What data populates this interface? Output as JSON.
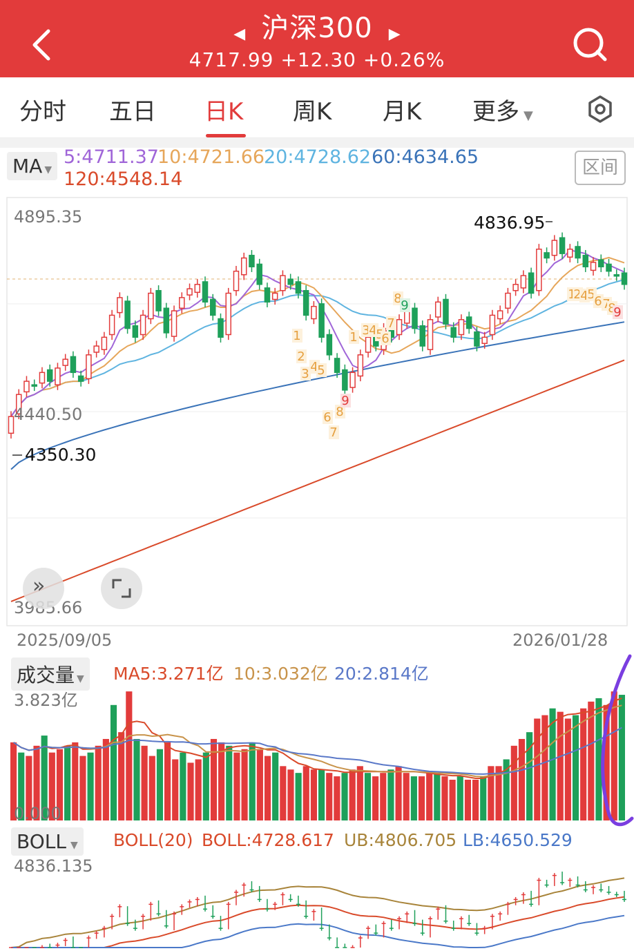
{
  "header": {
    "title": "沪深300",
    "price": "4717.99",
    "change": "+12.30",
    "change_pct": "+0.26%",
    "bg_color": "#e23b3b"
  },
  "tabs": [
    {
      "label": "分时"
    },
    {
      "label": "五日"
    },
    {
      "label": "日K",
      "active": true
    },
    {
      "label": "周K"
    },
    {
      "label": "月K"
    },
    {
      "label": "更多"
    }
  ],
  "ma": {
    "selector": "MA",
    "ma5": "5:4711.37",
    "ma10": "10:4721.66",
    "ma20": "20:4728.62",
    "ma60": "60:4634.65",
    "ma120": "120:4548.14",
    "range_button": "区间",
    "colors": {
      "ma5": "#a066d8",
      "ma10": "#e6a65a",
      "ma20": "#5fb4e0",
      "ma60": "#3a73b8",
      "ma120": "#d94a2a"
    }
  },
  "price_chart": {
    "y_top": "4895.35",
    "y_mid": "4440.50",
    "y_bottom": "3985.66",
    "max_label": "4836.95",
    "min_label": "4350.30",
    "date_start": "2025/09/05",
    "date_end": "2026/01/28"
  },
  "volume": {
    "selector": "成交量",
    "ma5": "MA5:3.271亿",
    "ma10": "10:3.032亿",
    "ma20": "20:2.814亿",
    "y_top": "3.823亿",
    "y_bottom": "0.000"
  },
  "boll": {
    "selector": "BOLL",
    "name": "BOLL(20)",
    "mid": "BOLL:4728.617",
    "ub": "UB:4806.705",
    "lb": "LB:4650.529",
    "y_top": "4836.135"
  },
  "chart_data": [
    {
      "type": "candlestick",
      "title": "沪深300",
      "ylim": [
        3985.66,
        4895.35
      ],
      "x_range": [
        "2025/09/05",
        "2026/01/28"
      ],
      "max": 4836.95,
      "min": 4350.3,
      "series": [
        {
          "name": "5",
          "last": 4711.37
        },
        {
          "name": "10",
          "last": 4721.66
        },
        {
          "name": "20",
          "last": 4728.62
        },
        {
          "name": "60",
          "last": 4634.65
        },
        {
          "name": "120",
          "last": 4548.14
        }
      ],
      "closes": [
        4420,
        4470,
        4500,
        4490,
        4520,
        4500,
        4530,
        4550,
        4520,
        4500,
        4560,
        4580,
        4600,
        4650,
        4690,
        4620,
        4600,
        4650,
        4700,
        4660,
        4610,
        4660,
        4690,
        4710,
        4720,
        4680,
        4650,
        4600,
        4700,
        4750,
        4780,
        4760,
        4720,
        4680,
        4700,
        4740,
        4720,
        4700,
        4650,
        4670,
        4600,
        4560,
        4520,
        4480,
        4520,
        4560,
        4600,
        4580,
        4620,
        4600,
        4640,
        4660,
        4620,
        4580,
        4640,
        4680,
        4630,
        4600,
        4640,
        4620,
        4580,
        4600,
        4650,
        4660,
        4700,
        4720,
        4740,
        4700,
        4800,
        4780,
        4820,
        4790,
        4800,
        4780,
        4760,
        4770,
        4760,
        4750,
        4740,
        4720
      ]
    },
    {
      "type": "bar",
      "title": "成交量",
      "ylim": [
        0,
        3.823
      ],
      "series": [
        {
          "name": "MA5",
          "last": 3.271
        },
        {
          "name": "10",
          "last": 3.032
        },
        {
          "name": "20",
          "last": 2.814
        }
      ],
      "values": [
        2.3,
        2.0,
        1.9,
        2.2,
        2.5,
        2.0,
        2.1,
        2.2,
        2.3,
        1.9,
        2.0,
        2.2,
        2.4,
        3.4,
        2.6,
        3.8,
        2.4,
        2.2,
        1.9,
        2.1,
        2.3,
        1.8,
        2.0,
        1.7,
        1.8,
        2.0,
        2.4,
        2.3,
        2.2,
        2.0,
        2.1,
        2.3,
        2.1,
        1.9,
        2.0,
        1.6,
        1.5,
        1.4,
        1.6,
        1.5,
        1.5,
        1.4,
        1.3,
        1.4,
        1.5,
        1.6,
        1.4,
        1.3,
        1.4,
        1.5,
        1.6,
        1.4,
        1.3,
        1.3,
        1.4,
        1.4,
        1.3,
        1.2,
        1.3,
        1.2,
        1.2,
        1.3,
        1.6,
        1.6,
        1.8,
        2.2,
        2.4,
        2.6,
        3.0,
        3.1,
        3.3,
        3.2,
        3.0,
        3.1,
        3.3,
        3.5,
        3.6,
        3.4,
        3.8,
        3.7
      ]
    },
    {
      "type": "line",
      "title": "BOLL(20)",
      "ylim": [
        4520,
        4836.135
      ],
      "series": [
        {
          "name": "BOLL",
          "last": 4728.617
        },
        {
          "name": "UB",
          "last": 4806.705
        },
        {
          "name": "LB",
          "last": 4650.529
        }
      ]
    }
  ]
}
